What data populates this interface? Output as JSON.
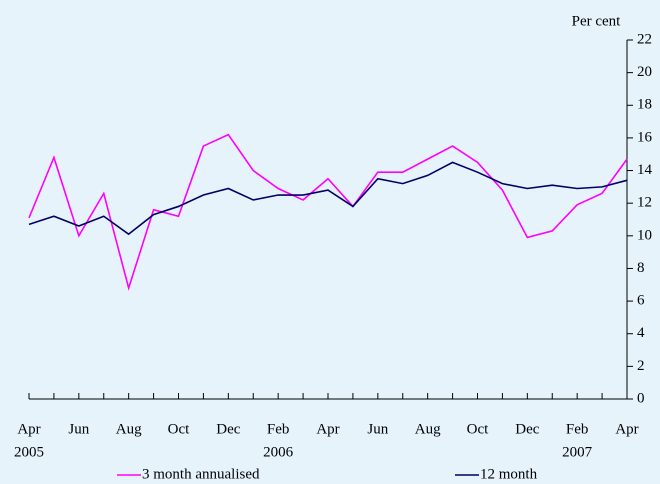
{
  "chart_data": {
    "type": "line",
    "y_axis_label": "Per cent",
    "categories": [
      "Apr",
      null,
      "Jun",
      null,
      "Aug",
      null,
      "Oct",
      null,
      "Dec",
      null,
      "Feb",
      null,
      "Apr",
      null,
      "Jun",
      null,
      "Aug",
      null,
      "Oct",
      null,
      "Dec",
      null,
      "Feb",
      null,
      "Apr"
    ],
    "years": [
      "2005",
      null,
      null,
      null,
      null,
      null,
      null,
      null,
      null,
      null,
      "2006",
      null,
      null,
      null,
      null,
      null,
      null,
      null,
      null,
      null,
      null,
      null,
      "2007",
      null,
      null
    ],
    "series": [
      {
        "name": "3 month annualised",
        "color": "#ff00ff",
        "values": [
          11.1,
          14.8,
          10.0,
          12.6,
          6.8,
          11.6,
          11.2,
          15.5,
          16.2,
          14.0,
          12.9,
          12.2,
          13.5,
          11.8,
          13.9,
          13.9,
          14.7,
          15.5,
          14.5,
          12.8,
          9.9,
          10.3,
          11.9,
          12.6,
          14.7
        ]
      },
      {
        "name": "12 month",
        "color": "#000066",
        "values": [
          10.7,
          11.2,
          10.6,
          11.2,
          10.1,
          11.3,
          11.8,
          12.5,
          12.9,
          12.2,
          12.5,
          12.5,
          12.8,
          11.8,
          13.5,
          13.2,
          13.7,
          14.5,
          13.9,
          13.2,
          12.9,
          13.1,
          12.9,
          13.0,
          13.4
        ]
      }
    ],
    "ylim": [
      0,
      22
    ],
    "yticks": [
      0,
      2,
      4,
      6,
      8,
      10,
      12,
      14,
      16,
      18,
      20,
      22
    ],
    "y_axis_side": "right",
    "legend": "bottom"
  }
}
